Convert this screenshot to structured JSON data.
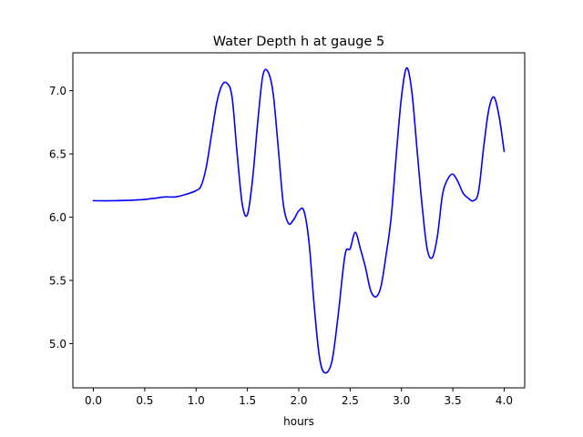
{
  "chart_data": {
    "type": "line",
    "title": "Water Depth h at gauge 5",
    "xlabel": "hours",
    "ylabel": "",
    "xlim": [
      -0.2,
      4.2
    ],
    "ylim": [
      4.65,
      7.3
    ],
    "grid": false,
    "xticks": [
      0.0,
      0.5,
      1.0,
      1.5,
      2.0,
      2.5,
      3.0,
      3.5,
      4.0
    ],
    "xtick_labels": [
      "0.0",
      "0.5",
      "1.0",
      "1.5",
      "2.0",
      "2.5",
      "3.0",
      "3.5",
      "4.0"
    ],
    "yticks": [
      5.0,
      5.5,
      6.0,
      6.5,
      7.0
    ],
    "ytick_labels": [
      "5.0",
      "5.5",
      "6.0",
      "6.5",
      "7.0"
    ],
    "series": [
      {
        "color": "#0000ff",
        "x": [
          0.0,
          0.2,
          0.4,
          0.5,
          0.6,
          0.7,
          0.8,
          0.9,
          1.0,
          1.05,
          1.1,
          1.15,
          1.2,
          1.25,
          1.3,
          1.35,
          1.4,
          1.45,
          1.5,
          1.55,
          1.6,
          1.65,
          1.7,
          1.75,
          1.8,
          1.85,
          1.9,
          1.95,
          2.0,
          2.05,
          2.1,
          2.15,
          2.2,
          2.25,
          2.32,
          2.38,
          2.45,
          2.5,
          2.55,
          2.6,
          2.65,
          2.7,
          2.75,
          2.8,
          2.85,
          2.9,
          2.95,
          3.0,
          3.05,
          3.1,
          3.15,
          3.2,
          3.25,
          3.3,
          3.35,
          3.4,
          3.45,
          3.5,
          3.55,
          3.6,
          3.65,
          3.7,
          3.75,
          3.8,
          3.85,
          3.9,
          3.95,
          4.0
        ],
        "y": [
          6.13,
          6.13,
          6.135,
          6.14,
          6.15,
          6.16,
          6.16,
          6.18,
          6.21,
          6.25,
          6.4,
          6.65,
          6.9,
          7.04,
          7.06,
          6.95,
          6.5,
          6.1,
          6.02,
          6.3,
          6.75,
          7.12,
          7.15,
          6.98,
          6.55,
          6.1,
          5.95,
          5.98,
          6.05,
          6.05,
          5.8,
          5.3,
          4.9,
          4.77,
          4.85,
          5.2,
          5.7,
          5.75,
          5.88,
          5.75,
          5.6,
          5.42,
          5.37,
          5.45,
          5.7,
          6.0,
          6.5,
          6.95,
          7.18,
          7.0,
          6.55,
          6.1,
          5.75,
          5.68,
          5.85,
          6.18,
          6.3,
          6.34,
          6.28,
          6.19,
          6.15,
          6.13,
          6.2,
          6.55,
          6.85,
          6.95,
          6.8,
          6.52
        ]
      }
    ]
  }
}
